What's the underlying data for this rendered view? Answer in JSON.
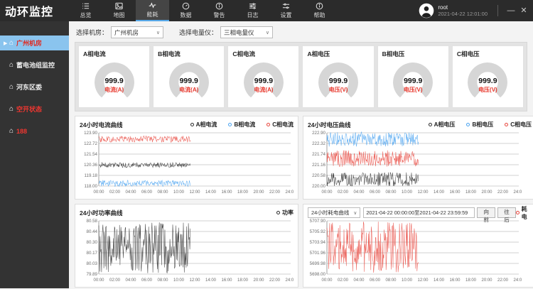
{
  "app_title": "动环监控",
  "topbar": {
    "tabs": [
      {
        "label": "总览",
        "icon": "overview-list-icon",
        "active": false
      },
      {
        "label": "地图",
        "icon": "map-image-icon",
        "active": false
      },
      {
        "label": "能耗",
        "icon": "energy-pulse-icon",
        "active": true
      },
      {
        "label": "数据",
        "icon": "data-gauge-icon",
        "active": false
      },
      {
        "label": "警告",
        "icon": "alert-info-icon",
        "active": false
      },
      {
        "label": "日志",
        "icon": "log-sliders-icon",
        "active": false
      },
      {
        "label": "设置",
        "icon": "settings-sliders-icon",
        "active": false
      },
      {
        "label": "帮助",
        "icon": "help-info-icon",
        "active": false
      }
    ],
    "user": {
      "name": "root",
      "datetime": "2021-04-22 12:01:00"
    },
    "window_controls": {
      "minimize": "—",
      "close": "✕"
    }
  },
  "sidebar": {
    "items": [
      {
        "label": "广州机房",
        "active": true,
        "alert": true
      },
      {
        "label": "蓄电池组监控",
        "active": false,
        "alert": false
      },
      {
        "label": "河东区委",
        "active": false,
        "alert": false
      },
      {
        "label": "空开状态",
        "active": false,
        "alert": true
      },
      {
        "label": "188",
        "active": false,
        "alert": true
      }
    ]
  },
  "filters": {
    "room_label": "选择机房：",
    "room_value": "广州机房",
    "meter_label": "选择电量仪：",
    "meter_value": "三相电量仪"
  },
  "gauges": [
    {
      "title": "A相电流",
      "value": "999.9",
      "unit": "电流(A)"
    },
    {
      "title": "B相电流",
      "value": "999.9",
      "unit": "电流(A)"
    },
    {
      "title": "C相电流",
      "value": "999.9",
      "unit": "电流(A)"
    },
    {
      "title": "A相电压",
      "value": "999.9",
      "unit": "电压(V)"
    },
    {
      "title": "B相电压",
      "value": "999.9",
      "unit": "电压(V)"
    },
    {
      "title": "C相电压",
      "value": "999.9",
      "unit": "电压(V)"
    }
  ],
  "colors": {
    "accent_blue": "#57a8e8",
    "sidebar_active_bg": "#8ac4ee",
    "alert_red": "#e8372c",
    "series_black": "#2b2b2b",
    "series_blue": "#4aa3f0",
    "series_red": "#e8453c"
  },
  "chart_data": [
    {
      "type": "line",
      "title": "24小时电流曲线",
      "grid": true,
      "legend_position": "top-right",
      "xticks": [
        "00:00",
        "02:00",
        "04:00",
        "06:00",
        "08:00",
        "10:00",
        "12:00",
        "14:00",
        "16:00",
        "18:00",
        "20:00",
        "22:00",
        "24:00"
      ],
      "yticks": [
        "123.90",
        "122.72",
        "121.54",
        "120.36",
        "119.18",
        "118.00"
      ],
      "ylim": [
        118.0,
        123.9
      ],
      "x_end_fraction": 0.478,
      "series": [
        {
          "name": "A相电流",
          "color": "#2b2b2b",
          "min": 120.05,
          "max": 120.6,
          "approx_mean": 120.33,
          "unit": "A"
        },
        {
          "name": "B相电流",
          "color": "#4aa3f0",
          "min": 117.95,
          "max": 118.65,
          "approx_mean": 118.3,
          "unit": "A"
        },
        {
          "name": "C相电流",
          "color": "#e8453c",
          "min": 122.85,
          "max": 123.55,
          "approx_mean": 123.2,
          "unit": "A"
        }
      ]
    },
    {
      "type": "line",
      "title": "24小时电压曲线",
      "grid": true,
      "legend_position": "top-right",
      "xticks": [
        "00:00",
        "02:00",
        "04:00",
        "06:00",
        "08:00",
        "10:00",
        "12:00",
        "14:00",
        "16:00",
        "18:00",
        "20:00",
        "22:00",
        "24:00"
      ],
      "yticks": [
        "222.90",
        "222.32",
        "221.74",
        "221.16",
        "220.58",
        "220.00"
      ],
      "ylim": [
        220.0,
        222.9
      ],
      "x_end_fraction": 0.478,
      "series": [
        {
          "name": "A相电压",
          "color": "#2b2b2b",
          "min": 219.98,
          "max": 220.75,
          "approx_mean": 220.35,
          "unit": "V"
        },
        {
          "name": "B相电压",
          "color": "#4aa3f0",
          "min": 222.15,
          "max": 222.95,
          "approx_mean": 222.55,
          "unit": "V"
        },
        {
          "name": "C相电压",
          "color": "#e8453c",
          "min": 221.05,
          "max": 221.95,
          "approx_mean": 221.5,
          "unit": "V"
        }
      ]
    },
    {
      "type": "line",
      "title": "24小时功率曲线",
      "grid": true,
      "legend_position": "top-right",
      "xticks": [
        "00:00",
        "02:00",
        "04:00",
        "06:00",
        "08:00",
        "10:00",
        "12:00",
        "14:00",
        "16:00",
        "18:00",
        "20:00",
        "22:00",
        "24:00"
      ],
      "yticks": [
        "80.58",
        "80.44",
        "80.30",
        "80.17",
        "80.03",
        "79.89"
      ],
      "ylim": [
        79.89,
        80.58
      ],
      "x_end_fraction": 0.478,
      "series": [
        {
          "name": "功率",
          "color": "#2b2b2b",
          "min": 79.9,
          "max": 80.56,
          "approx_mean": 80.23,
          "unit": "kW"
        }
      ]
    },
    {
      "type": "line",
      "title": "24小时耗电曲线",
      "grid": true,
      "legend_position": "top-right",
      "controls": {
        "select_value": "24小时耗电曲线",
        "date_range": "2021-04-22 00:00:00至2021-04-22 23:59:59",
        "prev_label": "向前",
        "next_label": "往后"
      },
      "xticks": [
        "00:00",
        "02:00",
        "04:00",
        "06:00",
        "08:00",
        "10:00",
        "12:00",
        "14:00",
        "16:00",
        "18:00",
        "20:00",
        "22:00",
        "24:00"
      ],
      "yticks": [
        "5707.90",
        "5705.92",
        "5703.94",
        "5701.96",
        "5699.98",
        "5698.00"
      ],
      "ylim": [
        5698.0,
        5707.9
      ],
      "x_end_fraction": 0.478,
      "series": [
        {
          "name": "耗电",
          "color": "#e8453c",
          "min": 5698.1,
          "max": 5707.8,
          "approx_mean": 5702.95,
          "unit": "kWh"
        }
      ]
    }
  ]
}
